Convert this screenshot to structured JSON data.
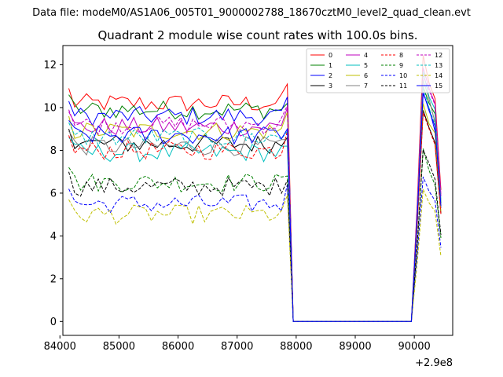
{
  "suptitle": "Data file: modeM0/AS1A06_005T01_9000002788_18670cztM0_level2_quad_clean.evt",
  "chart_data": {
    "type": "line",
    "title": "Quadrant 2 module wise count rates with 100.0s bins.",
    "xlabel": "",
    "ylabel": "",
    "x_offset_label": "+2.9e8",
    "xlim": [
      84050,
      90650
    ],
    "ylim": [
      -0.65,
      12.9
    ],
    "x_ticks": [
      84000,
      85000,
      86000,
      87000,
      88000,
      89000,
      90000
    ],
    "x_tick_labels": [
      "84000",
      "85000",
      "86000",
      "87000",
      "88000",
      "89000",
      "90000"
    ],
    "y_ticks": [
      0,
      2,
      4,
      6,
      8,
      10,
      12
    ],
    "y_tick_labels": [
      "0",
      "2",
      "4",
      "6",
      "8",
      "10",
      "12"
    ],
    "x_start": 84150,
    "step": 100,
    "active1_count": 38,
    "drop_count": 21,
    "active2_count": 5,
    "legend": {
      "location": "top-right",
      "columns": 4
    },
    "series": [
      {
        "name": "0",
        "color": "#ff0000",
        "dash": "solid",
        "base1": 10.2,
        "peak": 12.3
      },
      {
        "name": "1",
        "color": "#008000",
        "dash": "solid",
        "base1": 9.9,
        "peak": 11.1
      },
      {
        "name": "2",
        "color": "#0000ff",
        "dash": "solid",
        "base1": 9.6,
        "peak": 10.6
      },
      {
        "name": "3",
        "color": "#000000",
        "dash": "solid",
        "base1": 8.3,
        "peak": 10.1
      },
      {
        "name": "4",
        "color": "#bf00bf",
        "dash": "solid",
        "base1": 9.1,
        "peak": 11.9
      },
      {
        "name": "5",
        "color": "#00bfbf",
        "dash": "solid",
        "base1": 7.9,
        "peak": 11.4
      },
      {
        "name": "6",
        "color": "#bfbf00",
        "dash": "solid",
        "base1": 8.9,
        "peak": 10.3
      },
      {
        "name": "7",
        "color": "#808080",
        "dash": "solid",
        "base1": 8.2,
        "peak": 11.2
      },
      {
        "name": "8",
        "color": "#ff0000",
        "dash": "dashed",
        "base1": 8.0,
        "peak": 10.0
      },
      {
        "name": "9",
        "color": "#008000",
        "dash": "dashed",
        "base1": 6.5,
        "peak": 7.8
      },
      {
        "name": "10",
        "color": "#0000ff",
        "dash": "dashed",
        "base1": 5.5,
        "peak": 6.9
      },
      {
        "name": "11",
        "color": "#000000",
        "dash": "dashed",
        "base1": 6.3,
        "peak": 8.1
      },
      {
        "name": "12",
        "color": "#bf00bf",
        "dash": "dashed",
        "base1": 9.2,
        "peak": 11.7
      },
      {
        "name": "13",
        "color": "#00bfbf",
        "dash": "dashed",
        "base1": 8.6,
        "peak": 11.0
      },
      {
        "name": "14",
        "color": "#bfbf00",
        "dash": "dashed",
        "base1": 5.0,
        "peak": 6.1
      },
      {
        "name": "15",
        "color": "#0000ff",
        "dash": "solid",
        "base1": 8.7,
        "peak": 10.8
      }
    ]
  }
}
